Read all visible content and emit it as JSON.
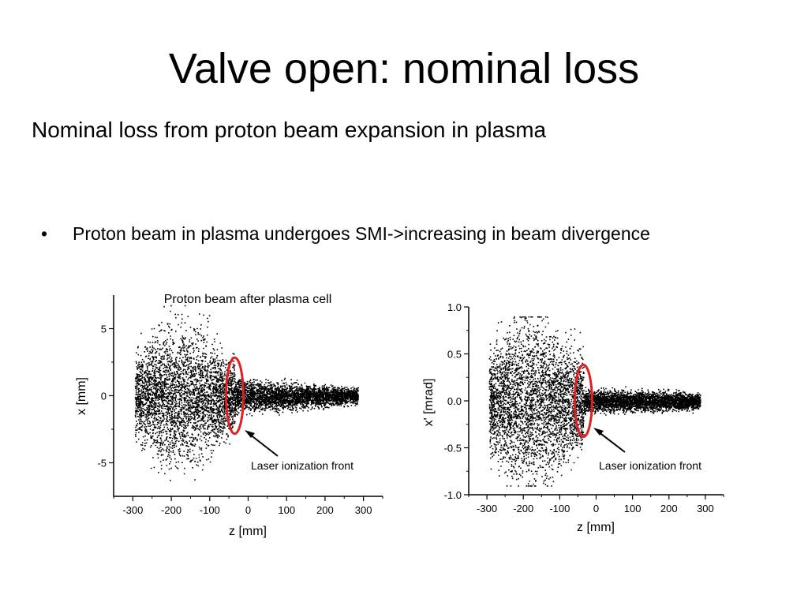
{
  "slide": {
    "title": "Valve open: nominal loss",
    "subtitle": "Nominal loss from proton beam expansion in plasma",
    "bullet_marker": "•",
    "bullet": "Proton beam in plasma undergoes SMI->increasing in beam divergence"
  },
  "chart_data": [
    {
      "type": "scatter",
      "title": "Proton beam after plasma cell",
      "xlabel": "z [mm]",
      "ylabel": "x [mm]",
      "xlim": [
        -350,
        350
      ],
      "ylim": [
        -7.5,
        7.5
      ],
      "x_ticks": [
        -300,
        -200,
        -100,
        0,
        100,
        200,
        300
      ],
      "x_tick_labels": [
        "-300",
        "-200",
        "-100",
        "0",
        "100",
        "200",
        "300"
      ],
      "y_ticks": [
        -5,
        0,
        5
      ],
      "y_tick_labels": [
        "-5",
        "0",
        "5"
      ],
      "annotation": "Laser ionization front",
      "marker_color": "#000000",
      "highlight_color": "#e02020",
      "highlight_z": -35,
      "highlight_halfwidth": 2.6,
      "wide_region": {
        "z_range": [
          -295,
          -35
        ],
        "halfwidth_range": [
          3.0,
          5.3
        ]
      },
      "narrow_region": {
        "z_range": [
          -35,
          285
        ],
        "halfwidth_range": [
          1.2,
          0.6
        ]
      }
    },
    {
      "type": "scatter",
      "title": "",
      "xlabel": "z [mm]",
      "ylabel": "x' [mrad]",
      "xlim": [
        -350,
        350
      ],
      "ylim": [
        -1.0,
        1.0
      ],
      "x_ticks": [
        -300,
        -200,
        -100,
        0,
        100,
        200,
        300
      ],
      "x_tick_labels": [
        "-300",
        "-200",
        "-100",
        "0",
        "100",
        "200",
        "300"
      ],
      "y_ticks": [
        -1.0,
        -0.5,
        0.0,
        0.5,
        1.0
      ],
      "y_tick_labels": [
        "-1.0",
        "-0.5",
        "0.0",
        "0.5",
        "1.0"
      ],
      "annotation": "Laser ionization front",
      "marker_color": "#000000",
      "highlight_color": "#e02020",
      "highlight_z": -35,
      "highlight_halfwidth": 0.35,
      "wide_region": {
        "z_range": [
          -295,
          -35
        ],
        "halfwidth_range": [
          0.55,
          0.88
        ]
      },
      "narrow_region": {
        "z_range": [
          -35,
          285
        ],
        "halfwidth_range": [
          0.12,
          0.08
        ]
      }
    }
  ]
}
